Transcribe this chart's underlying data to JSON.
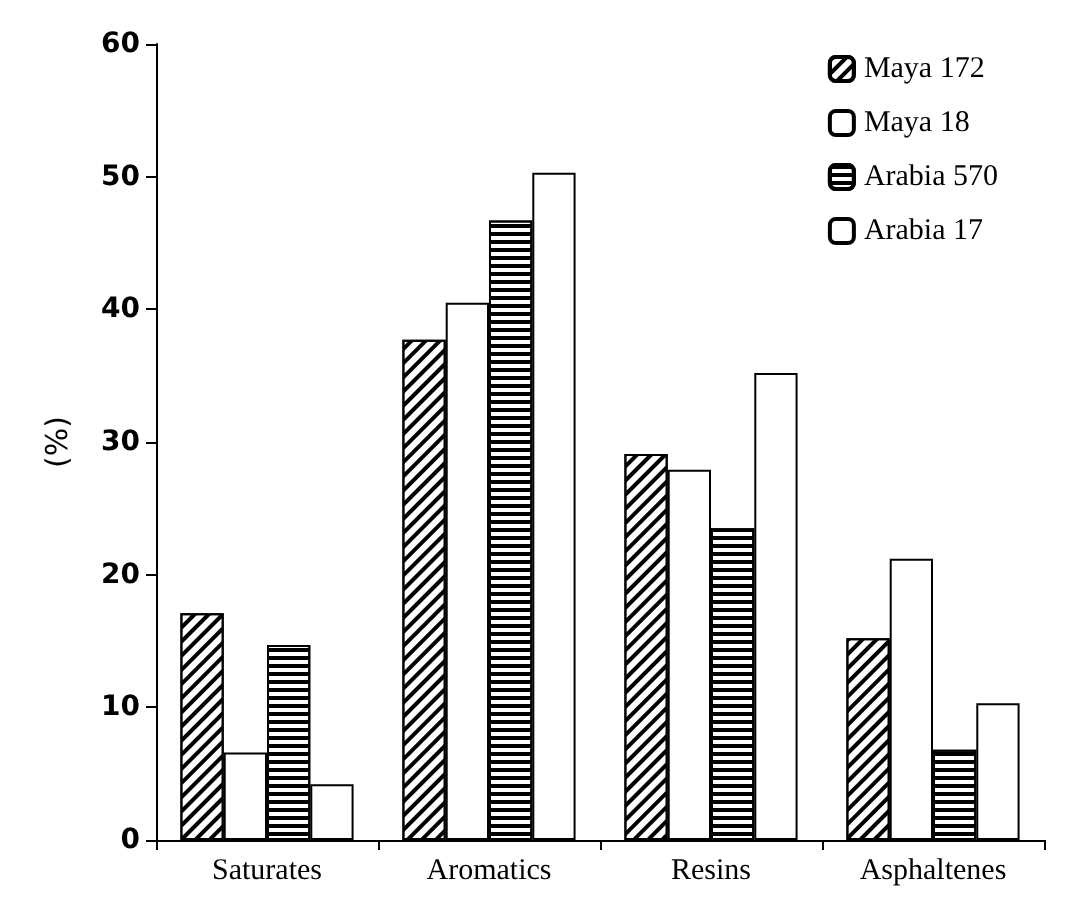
{
  "chart_data": {
    "type": "bar",
    "ylabel": "(%)",
    "categories": [
      "Saturates",
      "Aromatics",
      "Resins",
      "Asphaltenes"
    ],
    "series": [
      {
        "name": "Maya 172",
        "color": "#ffffff",
        "values": [
          17.1,
          37.7,
          29.1,
          15.2
        ]
      },
      {
        "name": "Maya 18",
        "color": "#ffffff",
        "values": [
          6.6,
          40.5,
          27.9,
          21.2
        ]
      },
      {
        "name": "Arabia 570",
        "color": "#ffffff",
        "values": [
          14.7,
          46.7,
          23.5,
          6.8
        ]
      },
      {
        "name": "Arabia 17",
        "color": "#ffffff",
        "values": [
          4.2,
          50.3,
          35.2,
          10.3
        ]
      }
    ],
    "ylim": [
      0,
      60
    ],
    "yticks": [
      0,
      10,
      20,
      30,
      40,
      50,
      60
    ],
    "grid": false,
    "legend": "top right"
  }
}
